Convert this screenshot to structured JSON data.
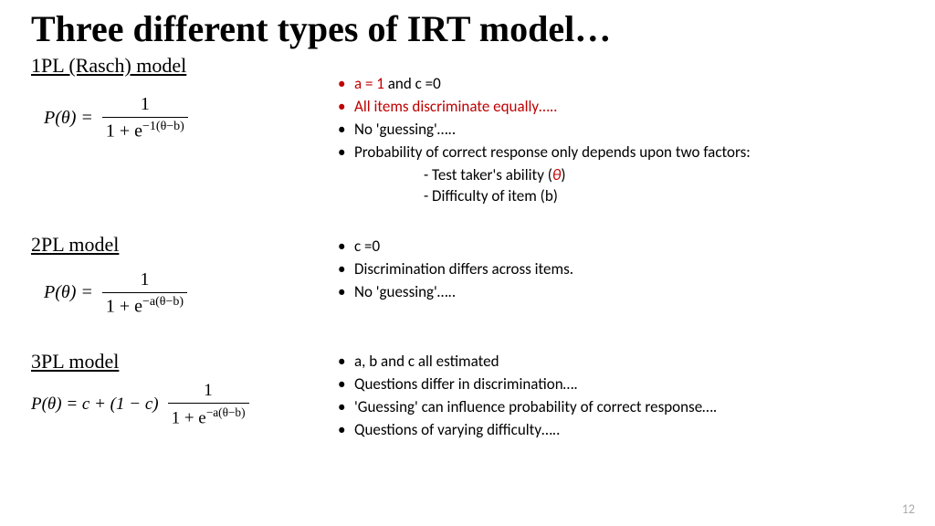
{
  "title": "Three different types of IRT model…",
  "page_number": "12",
  "colors": {
    "accent_red": "#c00000",
    "text": "#000000",
    "bg": "#ffffff",
    "page_num": "#aaaaaa"
  },
  "fonts": {
    "title_family": "Times New Roman",
    "title_size_pt": 40,
    "body_family": "Calibri",
    "body_size_pt": 17,
    "heading_size_pt": 22
  },
  "sections": [
    {
      "heading": "1PL (Rasch) model",
      "formula": {
        "lhs": "P(θ) =",
        "num": "1",
        "den_prefix": "1 + e",
        "exp": "−1(θ−b)"
      },
      "bullets": [
        {
          "html": "<span class='red'>a = 1</span> and c =0",
          "red_bullet": true
        },
        {
          "html": "<span class='red'>All items discriminate equally…..</span>",
          "red_bullet": true
        },
        {
          "html": "No 'guessing'…..",
          "red_bullet": false
        },
        {
          "html": "Probability of correct response only depends upon two factors:",
          "red_bullet": false
        }
      ],
      "sublines": [
        "-  Test taker's ability (<span class='italic red'>θ</span>)",
        "- Difficulty of item (b)"
      ]
    },
    {
      "heading": "2PL model",
      "formula": {
        "lhs": "P(θ)   =",
        "num": "1",
        "den_prefix": "1 + e",
        "exp": "−a(θ−b)"
      },
      "bullets": [
        {
          "html": "c =0",
          "red_bullet": false
        },
        {
          "html": "Discrimination differs across items.",
          "red_bullet": false
        },
        {
          "html": "No 'guessing'…..",
          "red_bullet": false
        }
      ],
      "sublines": []
    },
    {
      "heading": "3PL model",
      "formula": {
        "lhs": "P(θ) = c + (1 − c)",
        "num": "1",
        "den_prefix": "1 + e",
        "exp": "−a(θ−b)"
      },
      "bullets": [
        {
          "html": "a, b and c all estimated",
          "red_bullet": false
        },
        {
          "html": "Questions differ in discrimination….",
          "red_bullet": false
        },
        {
          "html": "'Guessing' can influence probability of correct response….",
          "red_bullet": false
        },
        {
          "html": "Questions of varying difficulty…..",
          "red_bullet": false
        }
      ],
      "sublines": []
    }
  ]
}
